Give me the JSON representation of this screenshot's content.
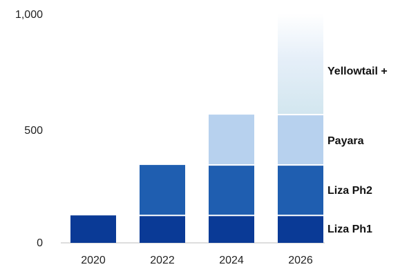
{
  "chart_data": {
    "type": "bar",
    "stacked": true,
    "title": "",
    "xlabel": "",
    "ylabel": "",
    "ylim": [
      0,
      1000
    ],
    "yticks": [
      "0",
      "500",
      "1,000"
    ],
    "ytick_values": [
      0,
      500,
      1000
    ],
    "categories": [
      "2020",
      "2022",
      "2024",
      "2026"
    ],
    "series": [
      {
        "name": "Liza Ph1",
        "color": "#0a3a96",
        "values": [
          120,
          120,
          120,
          120
        ]
      },
      {
        "name": "Liza Ph2",
        "color": "#1f5eb0",
        "values": [
          0,
          220,
          220,
          220
        ]
      },
      {
        "name": "Payara",
        "color": "#b7d1ee",
        "values": [
          0,
          0,
          220,
          220
        ]
      },
      {
        "name": "Yellowtail +",
        "color": "#d7e9f3",
        "gradient": true,
        "values": [
          0,
          0,
          0,
          440
        ]
      }
    ],
    "grid": false,
    "legend": "right, inline labels beside last bar"
  }
}
